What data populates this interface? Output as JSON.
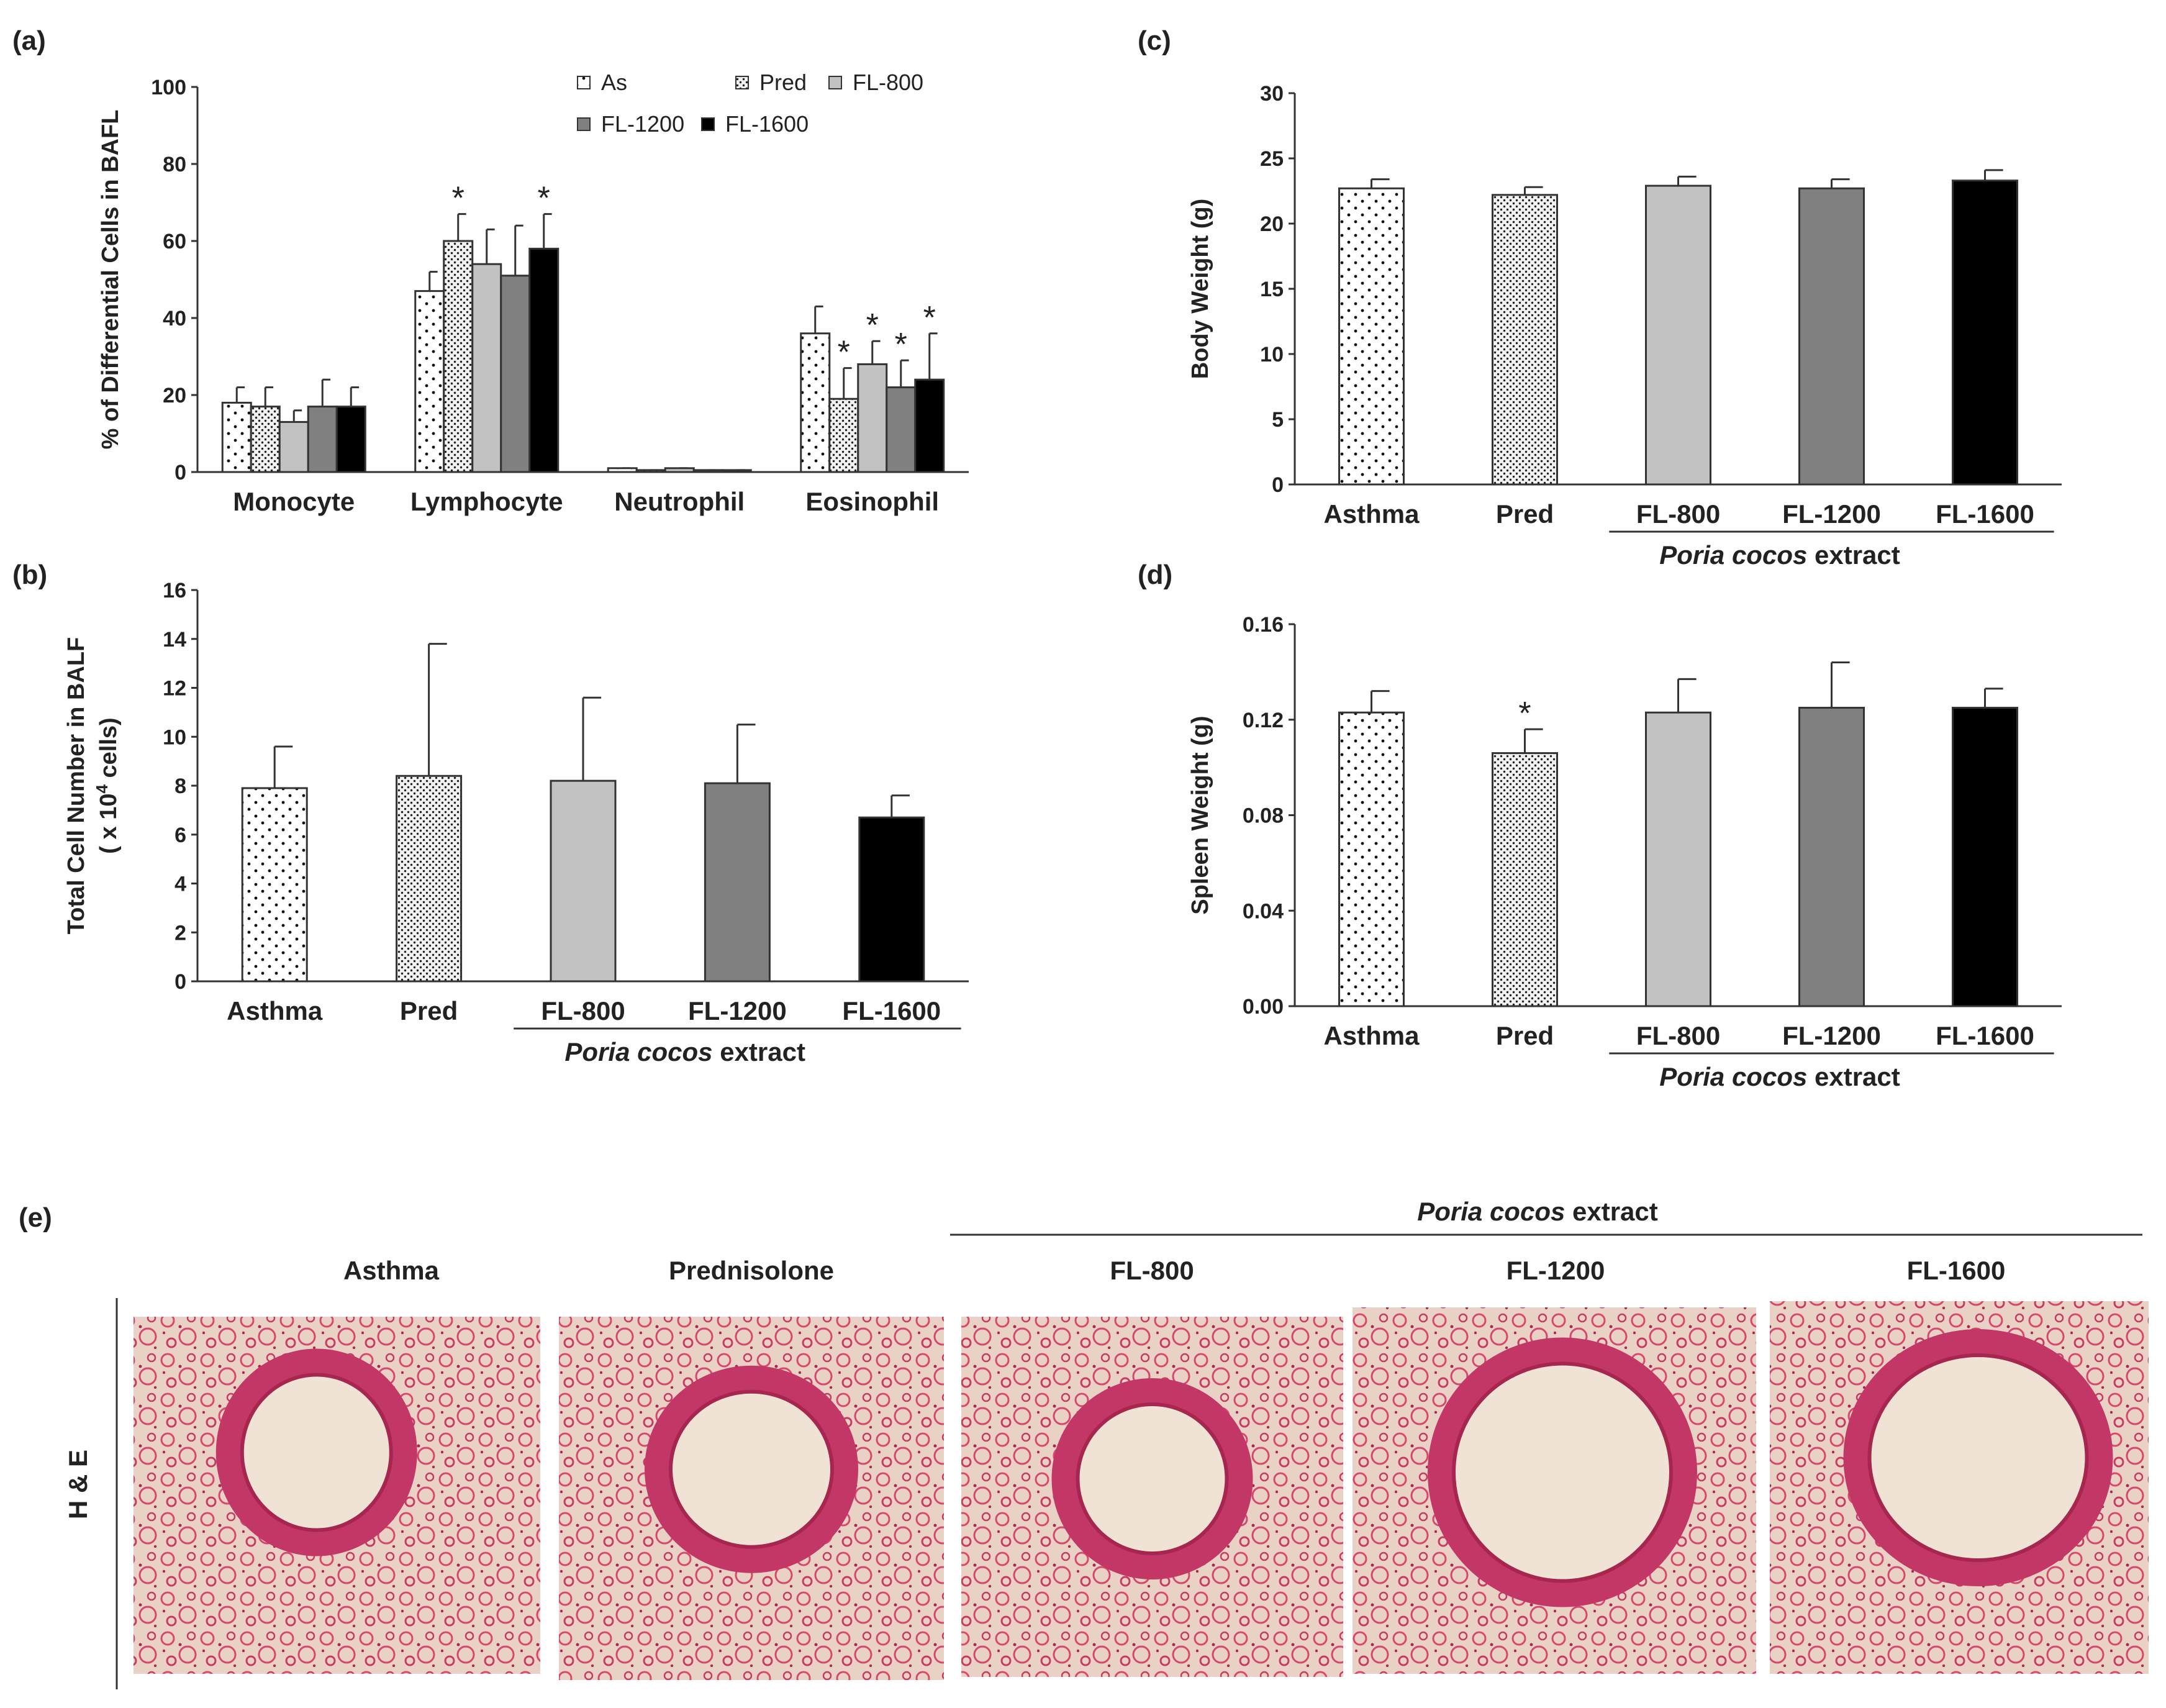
{
  "colors": {
    "asthma": "#ffffff",
    "pred": "#e6e6e6",
    "fl800": "#c2c2c2",
    "fl1200": "#808080",
    "fl1600": "#000000",
    "tissue": "#d9466e",
    "tissue_bg": "#ead1c6"
  },
  "panel_e": {
    "label": "(e)",
    "group_label_italic": "Poria cocos",
    "group_label_rest": " extract",
    "row_label": "H & E",
    "columns": [
      "Asthma",
      "Prednisolone",
      "FL-800",
      "FL-1200",
      "FL-1600"
    ]
  },
  "chart_data": [
    {
      "id": "a",
      "type": "bar",
      "label": "(a)",
      "ylabel": "% of Differential Cells in BAFL",
      "ylim": [
        0,
        100
      ],
      "yticks": [
        "0",
        "20",
        "40",
        "60",
        "80",
        "100"
      ],
      "categories": [
        "Monocyte",
        "Lymphocyte",
        "Neutrophil",
        "Eosinophil"
      ],
      "legend_position": "top-right",
      "series": [
        {
          "name": "As",
          "pattern": "asthma",
          "values": [
            18,
            47,
            1,
            36
          ],
          "errors": [
            4,
            5,
            0,
            7
          ],
          "significant": [
            false,
            false,
            false,
            false
          ]
        },
        {
          "name": "Pred",
          "pattern": "pred",
          "values": [
            17,
            60,
            0.5,
            19
          ],
          "errors": [
            5,
            7,
            0,
            8
          ],
          "significant": [
            false,
            true,
            false,
            true
          ]
        },
        {
          "name": "FL-800",
          "pattern": "fl800",
          "values": [
            13,
            54,
            1,
            28
          ],
          "errors": [
            3,
            9,
            0,
            6
          ],
          "significant": [
            false,
            false,
            false,
            true
          ]
        },
        {
          "name": "FL-1200",
          "pattern": "fl1200",
          "values": [
            17,
            51,
            0.5,
            22
          ],
          "errors": [
            7,
            13,
            0,
            7
          ],
          "significant": [
            false,
            false,
            false,
            true
          ]
        },
        {
          "name": "FL-1600",
          "pattern": "fl1600",
          "values": [
            17,
            58,
            0.5,
            24
          ],
          "errors": [
            5,
            9,
            0,
            12
          ],
          "significant": [
            false,
            true,
            false,
            true
          ]
        }
      ]
    },
    {
      "id": "b",
      "type": "bar",
      "label": "(b)",
      "ylabel": "Total Cell Number in BALF",
      "ylabel2": "( x 10",
      "ylabel2_sup": "4",
      "ylabel2_end": " cells)",
      "ylim": [
        0,
        16
      ],
      "yticks": [
        "0",
        "2",
        "4",
        "6",
        "8",
        "10",
        "12",
        "14",
        "16"
      ],
      "categories": [
        "Asthma",
        "Pred",
        "FL-800",
        "FL-1200",
        "FL-1600"
      ],
      "patterns": [
        "asthma",
        "pred",
        "fl800",
        "fl1200",
        "fl1600"
      ],
      "values": [
        7.9,
        8.4,
        8.2,
        8.1,
        6.7
      ],
      "errors": [
        1.7,
        5.4,
        3.4,
        2.4,
        0.9
      ],
      "significant": [
        false,
        false,
        false,
        false,
        false
      ],
      "group_label_italic": "Poria cocos",
      "group_label_rest": " extract"
    },
    {
      "id": "c",
      "type": "bar",
      "label": "(c)",
      "ylabel": "Body Weight (g)",
      "ylim": [
        0,
        30
      ],
      "yticks": [
        "0",
        "5",
        "10",
        "15",
        "20",
        "25",
        "30"
      ],
      "categories": [
        "Asthma",
        "Pred",
        "FL-800",
        "FL-1200",
        "FL-1600"
      ],
      "patterns": [
        "asthma",
        "pred",
        "fl800",
        "fl1200",
        "fl1600"
      ],
      "values": [
        22.7,
        22.2,
        22.9,
        22.7,
        23.3
      ],
      "errors": [
        0.7,
        0.6,
        0.7,
        0.7,
        0.8
      ],
      "significant": [
        false,
        false,
        false,
        false,
        false
      ],
      "group_label_italic": "Poria cocos",
      "group_label_rest": " extract"
    },
    {
      "id": "d",
      "type": "bar",
      "label": "(d)",
      "ylabel": "Spleen Weight (g)",
      "ylim": [
        0,
        0.16
      ],
      "yticks": [
        "0.00",
        "0.04",
        "0.08",
        "0.12",
        "0.16"
      ],
      "categories": [
        "Asthma",
        "Pred",
        "FL-800",
        "FL-1200",
        "FL-1600"
      ],
      "patterns": [
        "asthma",
        "pred",
        "fl800",
        "fl1200",
        "fl1600"
      ],
      "values": [
        0.123,
        0.106,
        0.123,
        0.125,
        0.125
      ],
      "errors": [
        0.009,
        0.01,
        0.014,
        0.019,
        0.008
      ],
      "significant": [
        false,
        true,
        false,
        false,
        false
      ],
      "group_label_italic": "Poria cocos",
      "group_label_rest": " extract"
    }
  ]
}
